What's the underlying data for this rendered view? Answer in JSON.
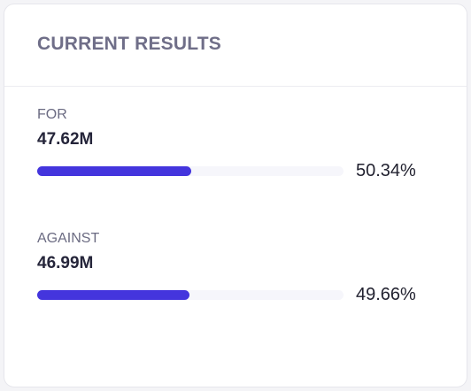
{
  "header": {
    "title": "CURRENT RESULTS"
  },
  "results": [
    {
      "label": "FOR",
      "amount": "47.62M",
      "percent": {
        "value": 50.34,
        "label": "50.34%"
      }
    },
    {
      "label": "AGAINST",
      "amount": "46.99M",
      "percent": {
        "value": 49.66,
        "label": "49.66%"
      }
    }
  ]
}
